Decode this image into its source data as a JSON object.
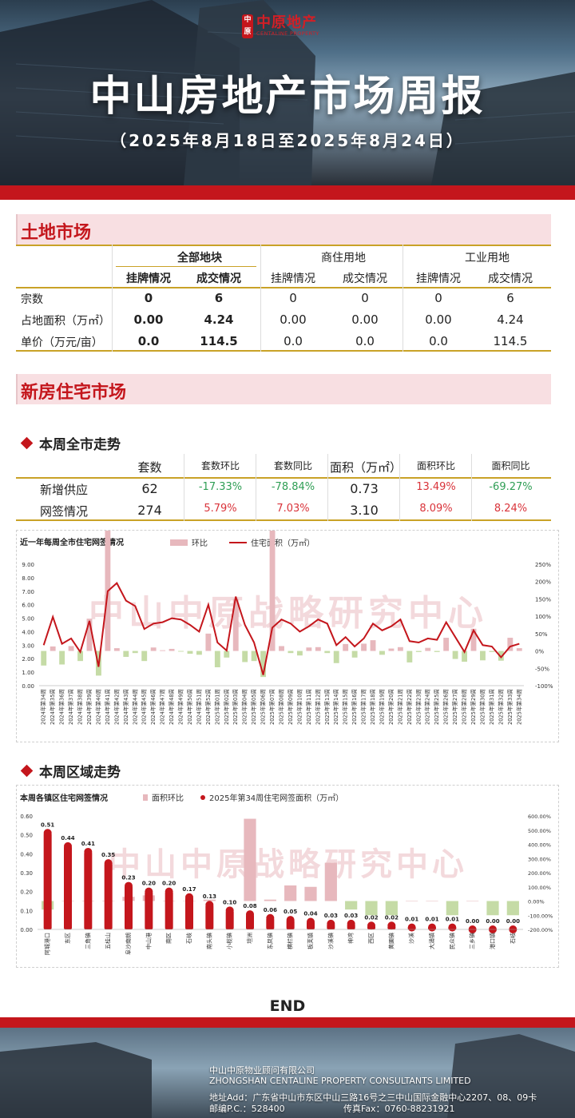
{
  "logo": {
    "seal": "中原",
    "name": "中原地产",
    "en": "CENTALINE PROPERTY"
  },
  "title": "中山房地产市场周报",
  "subtitle": "（2025年8月18日至2025年8月24日）",
  "land": {
    "heading": "土地市场",
    "groups": [
      "全部地块",
      "商住用地",
      "工业用地"
    ],
    "sub": [
      "挂牌情况",
      "成交情况",
      "挂牌情况",
      "成交情况",
      "挂牌情况",
      "成交情况"
    ],
    "rows": [
      {
        "label": "宗数",
        "values": [
          "0",
          "6",
          "0",
          "0",
          "0",
          "6"
        ]
      },
      {
        "label": "占地面积（万㎡）",
        "values": [
          "0.00",
          "4.24",
          "0.00",
          "0.00",
          "0.00",
          "4.24"
        ]
      },
      {
        "label": "单价（万元/亩）",
        "values": [
          "0.0",
          "114.5",
          "0.0",
          "0.0",
          "0.0",
          "114.5"
        ]
      }
    ]
  },
  "newhome": {
    "heading": "新房住宅市场",
    "weekly_heading": "本周全市走势",
    "cols": [
      "套数",
      "套数环比",
      "套数同比",
      "面积（万㎡）",
      "面积环比",
      "面积同比"
    ],
    "rows": [
      {
        "label": "新增供应",
        "values": [
          "62",
          "-17.33%",
          "-78.84%",
          "0.73",
          "13.49%",
          "-69.27%"
        ]
      },
      {
        "label": "网签情况",
        "values": [
          "274",
          "5.79%",
          "7.03%",
          "3.10",
          "8.09%",
          "8.24%"
        ]
      }
    ],
    "region_heading": "本周区域走势"
  },
  "colors": {
    "red": "#c4161c",
    "pink": "#e7b8bd",
    "green": "#c5dba6",
    "up": "#d9333a",
    "down": "#2f9e55",
    "gold": "#c9a227"
  },
  "watermark": "中山中原战略研究中心",
  "chart_data": [
    {
      "type": "line",
      "title": "近一年每周全市住宅网签情况",
      "legend_bar": "环比",
      "legend_line": "住宅面积（万㎡）",
      "y_ticks": [
        "0.00",
        "1.00",
        "2.00",
        "3.00",
        "4.00",
        "5.00",
        "6.00",
        "7.00",
        "8.00",
        "9.00"
      ],
      "y2_ticks": [
        "-100%",
        "-50%",
        "0%",
        "50%",
        "100%",
        "150%",
        "200%",
        "250%"
      ],
      "ylim": [
        0,
        9
      ],
      "y2lim": [
        -100,
        250
      ],
      "x": [
        "2024年第34周",
        "2024年第35周",
        "2024年第36周",
        "2024年第37周",
        "2024年第38周",
        "2024年第39周",
        "2024年第40周",
        "2024年第41周",
        "2024年第42周",
        "2024年第43周",
        "2024年第44周",
        "2024年第45周",
        "2024年第46周",
        "2024年第47周",
        "2024年第48周",
        "2024年第49周",
        "2024年第50周",
        "2024年第51周",
        "2024年第52周",
        "2025年第01周",
        "2025年第02周",
        "2025年第03周",
        "2025年第04周",
        "2025年第05周",
        "2025年第06周",
        "2025年第07周",
        "2025年第08周",
        "2025年第09周",
        "2025年第10周",
        "2025年第11周",
        "2025年第12周",
        "2025年第13周",
        "2025年第14周",
        "2025年第15周",
        "2025年第16周",
        "2025年第17周",
        "2025年第18周",
        "2025年第19周",
        "2025年第20周",
        "2025年第21周",
        "2025年第22周",
        "2025年第23周",
        "2025年第24周",
        "2025年第25周",
        "2025年第26周",
        "2025年第27周",
        "2025年第28周",
        "2025年第29周",
        "2025年第30周",
        "2025年第31周",
        "2025年第32周",
        "2025年第33周",
        "2025年第34周"
      ],
      "area": [
        3.0,
        5.1,
        3.1,
        3.5,
        2.5,
        4.8,
        1.4,
        7.0,
        7.6,
        6.3,
        5.9,
        4.2,
        4.6,
        4.7,
        5.0,
        4.9,
        4.5,
        4.0,
        6.0,
        3.2,
        2.6,
        6.6,
        4.5,
        3.2,
        0.8,
        4.3,
        4.9,
        4.6,
        4.0,
        4.4,
        4.9,
        4.6,
        3.0,
        3.6,
        2.9,
        3.5,
        4.6,
        4.1,
        4.4,
        4.9,
        3.3,
        3.2,
        3.5,
        3.4,
        4.7,
        3.6,
        2.5,
        4.1,
        3.0,
        2.9,
        2.1,
        2.9,
        3.1
      ],
      "ratio": [
        -42,
        13,
        -39,
        14,
        -29,
        93,
        -71,
        410,
        8,
        -17,
        -6,
        -29,
        10,
        2,
        6,
        -2,
        -8,
        -11,
        50,
        -47,
        -19,
        150,
        -32,
        -29,
        -75,
        435,
        14,
        -6,
        -13,
        10,
        11,
        -6,
        -35,
        20,
        -19,
        21,
        31,
        -11,
        7,
        11,
        -33,
        -3,
        9,
        -3,
        38,
        -23,
        -31,
        64,
        -27,
        -3,
        -28,
        38,
        8
      ]
    },
    {
      "type": "bar",
      "title": "本周各镇区住宅网签情况",
      "legend_bar": "面积环比",
      "legend_dot": "2025年第34周住宅网签面积（万㎡）",
      "y_ticks": [
        "0.00",
        "0.10",
        "0.20",
        "0.30",
        "0.40",
        "0.50",
        "0.60"
      ],
      "y2_ticks": [
        "-200.00%",
        "-100.00%",
        "0.00%",
        "100.00%",
        "200.00%",
        "300.00%",
        "400.00%",
        "500.00%",
        "600.00%"
      ],
      "ylim": [
        0,
        0.6
      ],
      "y2lim": [
        -200,
        600
      ],
      "categories": [
        "阿城港口",
        "东区",
        "三角镇",
        "五桂山",
        "阜沙南朗",
        "中山港",
        "南区",
        "石岐",
        "南头镇",
        "小榄镇",
        "坦洲",
        "东凤镇",
        "横栏镇",
        "板芙镇",
        "沙溪镇",
        "神湾",
        "西区",
        "黄圃镇",
        "沙溪",
        "大涌镇",
        "民众镇",
        "三乡镇",
        "港口镇",
        "石岐"
      ],
      "labels": [
        "0.51",
        "0.44",
        "0.41",
        "0.35",
        "0.23",
        "0.20",
        "0.20",
        "0.17",
        "0.13",
        "0.10",
        "0.08",
        "0.06",
        "0.05",
        "0.04",
        "0.03",
        "0.03",
        "0.02",
        "0.02",
        "0.01",
        "0.01",
        "0.01",
        "0.00",
        "0.00",
        "0.00"
      ],
      "values": [
        0.51,
        0.44,
        0.41,
        0.35,
        0.23,
        0.2,
        0.2,
        0.17,
        0.13,
        0.1,
        0.08,
        0.06,
        0.05,
        0.04,
        0.03,
        0.03,
        0.02,
        0.02,
        0.01,
        0.01,
        0.01,
        0.0,
        0.0,
        0.0
      ],
      "ratio": [
        -60,
        0,
        0,
        0,
        30,
        40,
        0,
        0,
        10,
        0,
        580,
        10,
        110,
        100,
        270,
        -60,
        -100,
        -100,
        0,
        0,
        -100,
        0,
        -100,
        -100
      ]
    }
  ],
  "end": "END",
  "footer": {
    "company_cn": "中山中原物业顾问有限公司",
    "company_en": "ZHONGSHAN CENTALINE PROPERTY CONSULTANTS LIMITED",
    "address": "地址Add：广东省中山市东区中山三路16号之三中山国际金融中心2207、08、09卡",
    "postcode": "邮编P.C.：528400",
    "fax": "传真Fax：0760-88231921"
  }
}
